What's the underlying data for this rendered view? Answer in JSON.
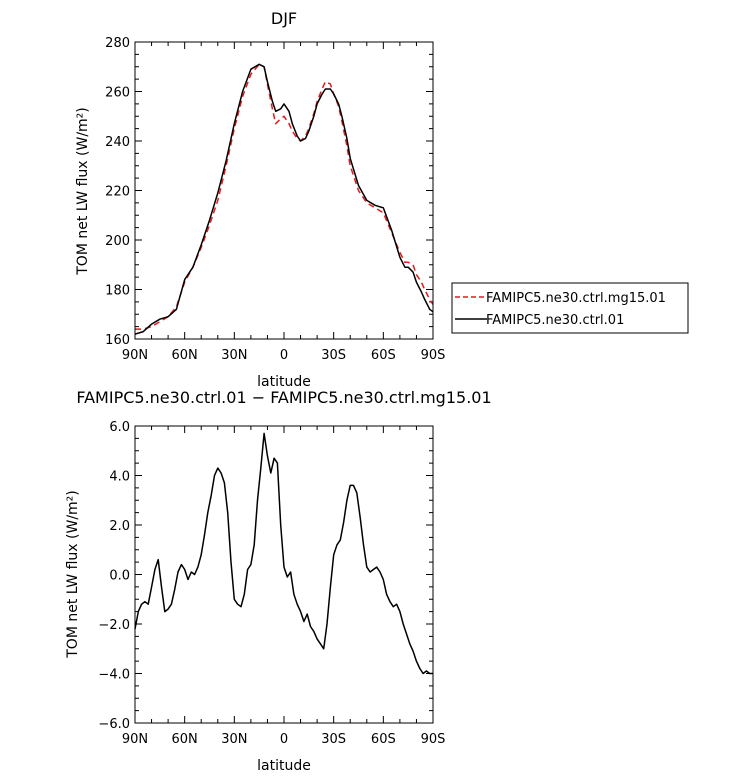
{
  "chart_data": [
    {
      "type": "line",
      "title": "DJF",
      "xlabel": "latitude",
      "ylabel": "TOM net LW flux (W/m²)",
      "ylim": [
        160,
        280
      ],
      "yticks": [
        "160",
        "180",
        "200",
        "220",
        "240",
        "260",
        "280"
      ],
      "xticks": [
        "90N",
        "60N",
        "30N",
        "0",
        "30S",
        "60S",
        "90S"
      ],
      "xlim": [
        90,
        -90
      ],
      "legend": "right",
      "series": [
        {
          "name": "FAMIPC5.ne30.ctrl.mg15.01",
          "color": "#e41a1c",
          "dash": "dashed",
          "x": [
            90,
            85,
            80,
            75,
            70,
            65,
            60,
            55,
            50,
            45,
            40,
            35,
            30,
            25,
            20,
            15,
            12,
            10,
            7,
            5,
            2,
            0,
            -3,
            -5,
            -8,
            -10,
            -13,
            -15,
            -18,
            -20,
            -23,
            -25,
            -28,
            -30,
            -33,
            -35,
            -38,
            -40,
            -45,
            -50,
            -55,
            -60,
            -65,
            -70,
            -73,
            -75,
            -78,
            -80,
            -83,
            -85,
            -88,
            -90
          ],
          "y": [
            164,
            164,
            165,
            167,
            169,
            173,
            183,
            189,
            197,
            206,
            216,
            230,
            245,
            258,
            267,
            271,
            270,
            263,
            253,
            247,
            249,
            250,
            247,
            244,
            241,
            240,
            242,
            245,
            251,
            256,
            261,
            264,
            263,
            259,
            254,
            248,
            238,
            230,
            220,
            215,
            213,
            211,
            203,
            195,
            191,
            191,
            190,
            186,
            183,
            180,
            176,
            174
          ]
        },
        {
          "name": "FAMIPC5.ne30.ctrl.01",
          "color": "#000000",
          "dash": "solid",
          "x": [
            90,
            85,
            80,
            75,
            70,
            65,
            60,
            55,
            50,
            45,
            40,
            35,
            30,
            25,
            20,
            15,
            12,
            10,
            7,
            5,
            2,
            0,
            -3,
            -5,
            -8,
            -10,
            -13,
            -15,
            -18,
            -20,
            -23,
            -25,
            -28,
            -30,
            -33,
            -35,
            -38,
            -40,
            -45,
            -50,
            -55,
            -60,
            -65,
            -70,
            -73,
            -75,
            -78,
            -80,
            -83,
            -85,
            -88,
            -90
          ],
          "y": [
            162,
            163,
            166,
            168,
            169,
            172,
            184,
            189,
            198,
            208,
            219,
            232,
            247,
            260,
            269,
            271,
            270,
            264,
            256,
            252,
            253,
            255,
            252,
            247,
            242,
            240,
            241,
            244,
            250,
            255,
            259,
            261,
            261,
            259,
            255,
            250,
            241,
            233,
            222,
            216,
            214,
            213,
            204,
            193,
            189,
            189,
            187,
            183,
            179,
            176,
            172,
            171
          ]
        }
      ]
    },
    {
      "type": "line",
      "title": "FAMIPC5.ne30.ctrl.01 − FAMIPC5.ne30.ctrl.mg15.01",
      "xlabel": "latitude",
      "ylabel": "TOM net LW flux (W/m²)",
      "ylim": [
        -6,
        6
      ],
      "yticks": [
        "−6.0",
        "−4.0",
        "−2.0",
        "0.0",
        "2.0",
        "4.0",
        "6.0"
      ],
      "xticks": [
        "90N",
        "60N",
        "30N",
        "0",
        "30S",
        "60S",
        "90S"
      ],
      "xlim": [
        90,
        -90
      ],
      "series": [
        {
          "color": "#000000",
          "x": [
            90,
            88,
            86,
            84,
            82,
            80,
            78,
            76,
            74,
            72,
            70,
            68,
            66,
            64,
            62,
            60,
            58,
            56,
            54,
            52,
            50,
            48,
            46,
            44,
            42,
            40,
            38,
            36,
            34,
            32,
            30,
            28,
            26,
            24,
            22,
            20,
            18,
            16,
            14,
            12,
            10,
            8,
            6,
            4,
            2,
            0,
            -2,
            -4,
            -6,
            -8,
            -10,
            -12,
            -14,
            -16,
            -18,
            -20,
            -22,
            -24,
            -26,
            -28,
            -30,
            -32,
            -34,
            -36,
            -38,
            -40,
            -42,
            -44,
            -46,
            -48,
            -50,
            -52,
            -54,
            -56,
            -58,
            -60,
            -62,
            -64,
            -66,
            -68,
            -70,
            -72,
            -74,
            -76,
            -78,
            -80,
            -82,
            -84,
            -86,
            -88,
            -90
          ],
          "y": [
            -2.2,
            -1.5,
            -1.2,
            -1.1,
            -1.2,
            -0.5,
            0.2,
            0.6,
            -0.5,
            -1.5,
            -1.4,
            -1.2,
            -0.6,
            0.1,
            0.4,
            0.2,
            -0.2,
            0.1,
            0.0,
            0.3,
            0.8,
            1.6,
            2.5,
            3.2,
            4.0,
            4.3,
            4.1,
            3.7,
            2.5,
            0.5,
            -1.0,
            -1.2,
            -1.3,
            -0.8,
            0.2,
            0.4,
            1.2,
            3.0,
            4.3,
            5.7,
            4.8,
            4.1,
            4.7,
            4.5,
            2.0,
            0.3,
            -0.1,
            0.1,
            -0.8,
            -1.2,
            -1.5,
            -1.9,
            -1.6,
            -2.1,
            -2.3,
            -2.6,
            -2.8,
            -3.0,
            -2.0,
            -0.5,
            0.8,
            1.2,
            1.4,
            2.1,
            3.0,
            3.6,
            3.6,
            3.3,
            2.3,
            1.2,
            0.3,
            0.1,
            0.2,
            0.3,
            0.1,
            -0.2,
            -0.8,
            -1.1,
            -1.3,
            -1.2,
            -1.5,
            -2.0,
            -2.4,
            -2.8,
            -3.1,
            -3.5,
            -3.8,
            -4.0,
            -3.9,
            -4.0,
            -4.0
          ]
        }
      ]
    }
  ],
  "legend": {
    "entries": [
      "FAMIPC5.ne30.ctrl.mg15.01",
      "FAMIPC5.ne30.ctrl.01"
    ]
  }
}
